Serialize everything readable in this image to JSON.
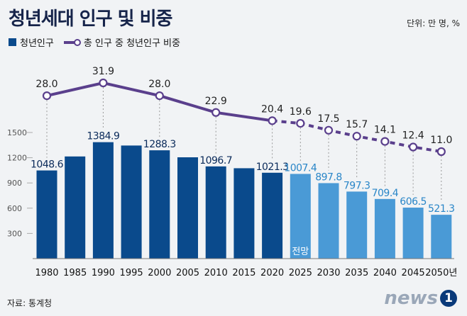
{
  "title": "청년세대 인구 및 비중",
  "unit": "단위: 만 명, %",
  "legend": {
    "bar": "청년인구",
    "line": "총 인구 중 청년인구 비중"
  },
  "source": "자료: 통계청",
  "logo": {
    "text": "news",
    "badge": "1"
  },
  "forecast_label": "전망",
  "colors": {
    "actual_bar": "#0a4a8c",
    "projected_bar": "#4a9ad6",
    "line": "#5a3f8c"
  },
  "chart_data": {
    "type": "bar",
    "categories": [
      "1980",
      "1985",
      "1990",
      "1995",
      "2000",
      "2005",
      "2010",
      "2015",
      "2020",
      "2025",
      "2030",
      "2035",
      "2040",
      "2045",
      "2050년"
    ],
    "series": [
      {
        "name": "청년인구",
        "values": [
          1048.6,
          1215,
          1384.9,
          1345,
          1288.3,
          1205,
          1096.7,
          1075,
          1021.3,
          1007.4,
          897.8,
          797.3,
          709.4,
          606.5,
          521.3
        ]
      },
      {
        "name": "총 인구 중 청년인구 비중",
        "values": [
          28.0,
          null,
          31.9,
          null,
          28.0,
          null,
          22.9,
          null,
          20.4,
          19.6,
          17.5,
          15.7,
          14.1,
          12.4,
          11.0
        ]
      }
    ],
    "bar_labels": [
      "1048.6",
      "",
      "1384.9",
      "",
      "1288.3",
      "",
      "1096.7",
      "",
      "1021.3",
      "1007.4",
      "897.8",
      "797.3",
      "709.4",
      "606.5",
      "521.3"
    ],
    "line_labels": [
      "28.0",
      "",
      "31.9",
      "",
      "28.0",
      "",
      "22.9",
      "",
      "20.4",
      "19.6",
      "17.5",
      "15.7",
      "14.1",
      "12.4",
      "11.0"
    ],
    "projection_start_index": 9,
    "y_ticks": [
      "1500",
      "1200",
      "900",
      "600",
      "300"
    ],
    "y_tick_values": [
      1500,
      1200,
      900,
      600,
      300
    ],
    "ylim": [
      0,
      1500
    ],
    "line_ylim": [
      11,
      31.9
    ],
    "grid": false
  }
}
